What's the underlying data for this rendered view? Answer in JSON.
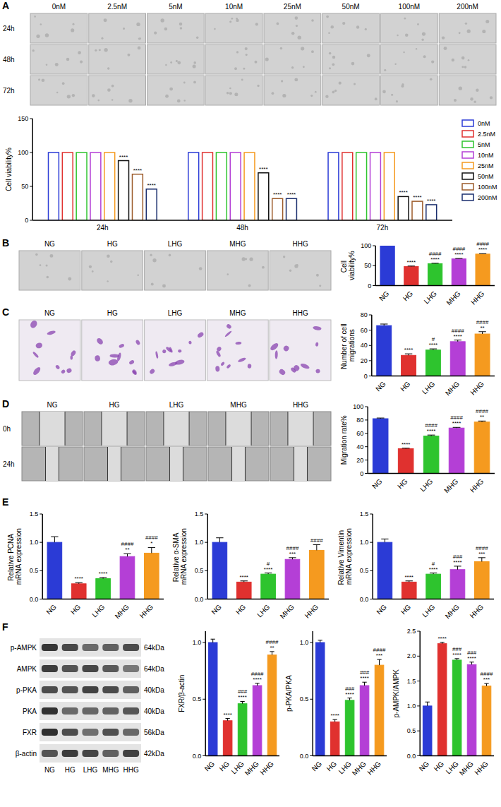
{
  "image_panels": [
    {
      "panel": "A",
      "columns": [
        "0nM",
        "2.5nM",
        "5nM",
        "10nM",
        "25nM",
        "50nM",
        "100nM",
        "200nM"
      ],
      "rows": [
        "24h",
        "48h",
        "72h"
      ]
    },
    {
      "panel": "B",
      "columns": [
        "NG",
        "HG",
        "LHG",
        "MHG",
        "HHG"
      ]
    },
    {
      "panel": "C",
      "columns": [
        "NG",
        "HG",
        "LHG",
        "MHG",
        "HHG"
      ]
    },
    {
      "panel": "D",
      "columns": [
        "NG",
        "HG",
        "LHG",
        "MHG",
        "HHG"
      ],
      "rows": [
        "0h",
        "24h"
      ]
    }
  ],
  "blot": {
    "panel": "F",
    "proteins": [
      "p-AMPK",
      "AMPK",
      "p-PKA",
      "PKA",
      "FXR",
      "β-actin"
    ],
    "sizes": [
      "64kDa",
      "64kDa",
      "40kDa",
      "40kDa",
      "56kDa",
      "42kDa"
    ],
    "lanes": [
      "NG",
      "HG",
      "LHG",
      "MHG",
      "HHG"
    ]
  },
  "chart_data": [
    {
      "type": "bar",
      "y_label": "Cell viability%",
      "categories": [
        "24h",
        "48h",
        "72h"
      ],
      "legend": "right",
      "ylim": [
        0,
        150
      ],
      "yticks": [
        0,
        50,
        100,
        150
      ],
      "series": [
        {
          "name": "0nM",
          "color": "#2b3bd6",
          "values": [
            100,
            100,
            100
          ],
          "significance": [
            null,
            null,
            null
          ]
        },
        {
          "name": "2.5nM",
          "color": "#e0312f",
          "values": [
            100,
            100,
            100
          ],
          "significance": [
            null,
            null,
            null
          ]
        },
        {
          "name": "5nM",
          "color": "#2ec42e",
          "values": [
            100,
            100,
            100
          ],
          "significance": [
            null,
            null,
            null
          ]
        },
        {
          "name": "10nM",
          "color": "#b43fd6",
          "values": [
            100,
            100,
            100
          ],
          "significance": [
            null,
            null,
            null
          ]
        },
        {
          "name": "25nM",
          "color": "#f59a1f",
          "values": [
            100,
            100,
            100
          ],
          "significance": [
            null,
            null,
            null
          ]
        },
        {
          "name": "50nM",
          "color": "#111111",
          "values": [
            88,
            70,
            35
          ],
          "significance": [
            "****",
            "****",
            "****"
          ]
        },
        {
          "name": "100nM",
          "color": "#9c5b2a",
          "values": [
            68,
            32,
            28
          ],
          "significance": [
            "****",
            "****",
            "****"
          ]
        },
        {
          "name": "200nM",
          "color": "#1a2e6e",
          "values": [
            46,
            32,
            23
          ],
          "significance": [
            "****",
            "****",
            "****"
          ]
        }
      ]
    },
    {
      "type": "bar",
      "y_label": "Cell viability%",
      "categories": [
        "NG",
        "HG",
        "LHG",
        "MHG",
        "HHG"
      ],
      "values": [
        100,
        48,
        55,
        67,
        79
      ],
      "errors": [
        0.8,
        1,
        1,
        1,
        1
      ],
      "stars": [
        null,
        "****",
        "****",
        "****",
        "****"
      ],
      "hashes": [
        null,
        null,
        "####",
        "####",
        "####"
      ],
      "colors": [
        "#2b3bd6",
        "#e0312f",
        "#2ec42e",
        "#b43fd6",
        "#f59a1f"
      ],
      "ylim": [
        0,
        100
      ],
      "yticks": [
        0,
        50,
        100
      ]
    },
    {
      "type": "bar",
      "y_label": "Number of cell migrations",
      "categories": [
        "NG",
        "HG",
        "LHG",
        "MHG",
        "HHG"
      ],
      "values": [
        66,
        27,
        34,
        45,
        55
      ],
      "errors": [
        2,
        2,
        1.5,
        2,
        3
      ],
      "stars": [
        null,
        "****",
        "****",
        "****",
        "**"
      ],
      "hashes": [
        null,
        null,
        "#",
        "####",
        "####"
      ],
      "colors": [
        "#2b3bd6",
        "#e0312f",
        "#2ec42e",
        "#b43fd6",
        "#f59a1f"
      ],
      "ylim": [
        0,
        80
      ],
      "yticks": [
        0,
        20,
        40,
        60,
        80
      ]
    },
    {
      "type": "bar",
      "y_label": "Migration rate%",
      "categories": [
        "NG",
        "HG",
        "LHG",
        "MHG",
        "HHG"
      ],
      "values": [
        82,
        37,
        56,
        68,
        77
      ],
      "errors": [
        1,
        0.8,
        1.5,
        1,
        1.5
      ],
      "stars": [
        null,
        "****",
        "****",
        "****",
        "**"
      ],
      "hashes": [
        null,
        null,
        "####",
        "####",
        "####"
      ],
      "colors": [
        "#2b3bd6",
        "#e0312f",
        "#2ec42e",
        "#b43fd6",
        "#f59a1f"
      ],
      "ylim": [
        0,
        100
      ],
      "yticks": [
        0,
        20,
        40,
        60,
        80,
        100
      ]
    },
    {
      "panel": "E",
      "type": "bar",
      "y_label": "Relative PCNA mRNA expression",
      "categories": [
        "NG",
        "HG",
        "LHG",
        "MHG",
        "HHG"
      ],
      "values": [
        1.0,
        0.27,
        0.36,
        0.75,
        0.81
      ],
      "errors": [
        0.1,
        0.02,
        0.02,
        0.05,
        0.1
      ],
      "stars": [
        null,
        "****",
        "****",
        "**",
        "*"
      ],
      "hashes": [
        null,
        null,
        null,
        "####",
        "####"
      ],
      "colors": [
        "#2b3bd6",
        "#e0312f",
        "#2ec42e",
        "#b43fd6",
        "#f59a1f"
      ],
      "ylim": [
        0,
        1.5
      ],
      "yticks": [
        {
          "value": 0,
          "label": "0.0"
        },
        0.5,
        {
          "value": 1,
          "label": "1.0"
        },
        1.5
      ]
    },
    {
      "type": "bar",
      "y_label": "Relative α-SMA mRNA expression",
      "categories": [
        "NG",
        "HG",
        "LHG",
        "MHG",
        "HHG"
      ],
      "values": [
        1.0,
        0.3,
        0.44,
        0.7,
        0.86
      ],
      "errors": [
        0.08,
        0.02,
        0.02,
        0.03,
        0.1
      ],
      "stars": [
        null,
        "****",
        "****",
        "***",
        null
      ],
      "hashes": [
        null,
        null,
        "#",
        "####",
        "####"
      ],
      "colors": [
        "#2b3bd6",
        "#e0312f",
        "#2ec42e",
        "#b43fd6",
        "#f59a1f"
      ],
      "ylim": [
        0,
        1.5
      ],
      "yticks": [
        {
          "value": 0,
          "label": "0.0"
        },
        0.5,
        {
          "value": 1,
          "label": "1.0"
        },
        1.5
      ]
    },
    {
      "type": "bar",
      "y_label": "Relative Vimentin mRNA expression",
      "categories": [
        "NG",
        "HG",
        "LHG",
        "MHG",
        "HHG"
      ],
      "values": [
        1.0,
        0.3,
        0.44,
        0.52,
        0.66
      ],
      "errors": [
        0.06,
        0.02,
        0.02,
        0.06,
        0.07
      ],
      "stars": [
        null,
        "****",
        "****",
        "****",
        "***"
      ],
      "hashes": [
        null,
        null,
        "#",
        "###",
        "####"
      ],
      "colors": [
        "#2b3bd6",
        "#e0312f",
        "#2ec42e",
        "#b43fd6",
        "#f59a1f"
      ],
      "ylim": [
        0,
        1.5
      ],
      "yticks": [
        {
          "value": 0,
          "label": "0.0"
        },
        0.5,
        {
          "value": 1,
          "label": "1.0"
        },
        1.5
      ]
    },
    {
      "type": "bar",
      "y_label": "FXR/β-actin",
      "categories": [
        "NG",
        "HG",
        "LHG",
        "MHG",
        "HHG"
      ],
      "values": [
        1.0,
        0.31,
        0.46,
        0.62,
        0.89
      ],
      "errors": [
        0.03,
        0.02,
        0.02,
        0.02,
        0.03
      ],
      "stars": [
        null,
        "****",
        "****",
        "****",
        "**"
      ],
      "hashes": [
        null,
        null,
        "###",
        "####",
        "####"
      ],
      "colors": [
        "#2b3bd6",
        "#e0312f",
        "#2ec42e",
        "#b43fd6",
        "#f59a1f"
      ],
      "ylim": [
        0,
        1.1
      ],
      "yticks": [
        {
          "value": 0,
          "label": "0.0"
        },
        0.5,
        {
          "value": 1,
          "label": "1.0"
        }
      ]
    },
    {
      "type": "bar",
      "y_label": "p-PKA/PKA",
      "categories": [
        "NG",
        "HG",
        "LHG",
        "MHG",
        "HHG"
      ],
      "values": [
        1.0,
        0.3,
        0.49,
        0.62,
        0.8
      ],
      "errors": [
        0.02,
        0.02,
        0.02,
        0.03,
        0.05
      ],
      "stars": [
        null,
        "****",
        "****",
        "****",
        "***"
      ],
      "hashes": [
        null,
        null,
        "###",
        "###",
        "####"
      ],
      "colors": [
        "#2b3bd6",
        "#e0312f",
        "#2ec42e",
        "#b43fd6",
        "#f59a1f"
      ],
      "ylim": [
        0,
        1.1
      ],
      "yticks": [
        {
          "value": 0,
          "label": "0.0"
        },
        0.5,
        {
          "value": 1,
          "label": "1.0"
        }
      ]
    },
    {
      "type": "bar",
      "y_label": "p-AMPK/AMPK",
      "categories": [
        "NG",
        "HG",
        "LHG",
        "MHG",
        "HHG"
      ],
      "values": [
        1.0,
        2.25,
        1.92,
        1.83,
        1.4
      ],
      "errors": [
        0.08,
        0.03,
        0.03,
        0.05,
        0.05
      ],
      "stars": [
        null,
        "****",
        "****",
        "****",
        "***"
      ],
      "hashes": [
        null,
        null,
        "###",
        "###",
        "####"
      ],
      "colors": [
        "#2b3bd6",
        "#e0312f",
        "#2ec42e",
        "#b43fd6",
        "#f59a1f"
      ],
      "ylim": [
        0,
        2.5
      ],
      "yticks": [
        {
          "value": 0,
          "label": "0.0"
        },
        0.5,
        {
          "value": 1,
          "label": "1.0"
        },
        1.5,
        {
          "value": 2,
          "label": "2.0"
        },
        2.5
      ]
    }
  ]
}
